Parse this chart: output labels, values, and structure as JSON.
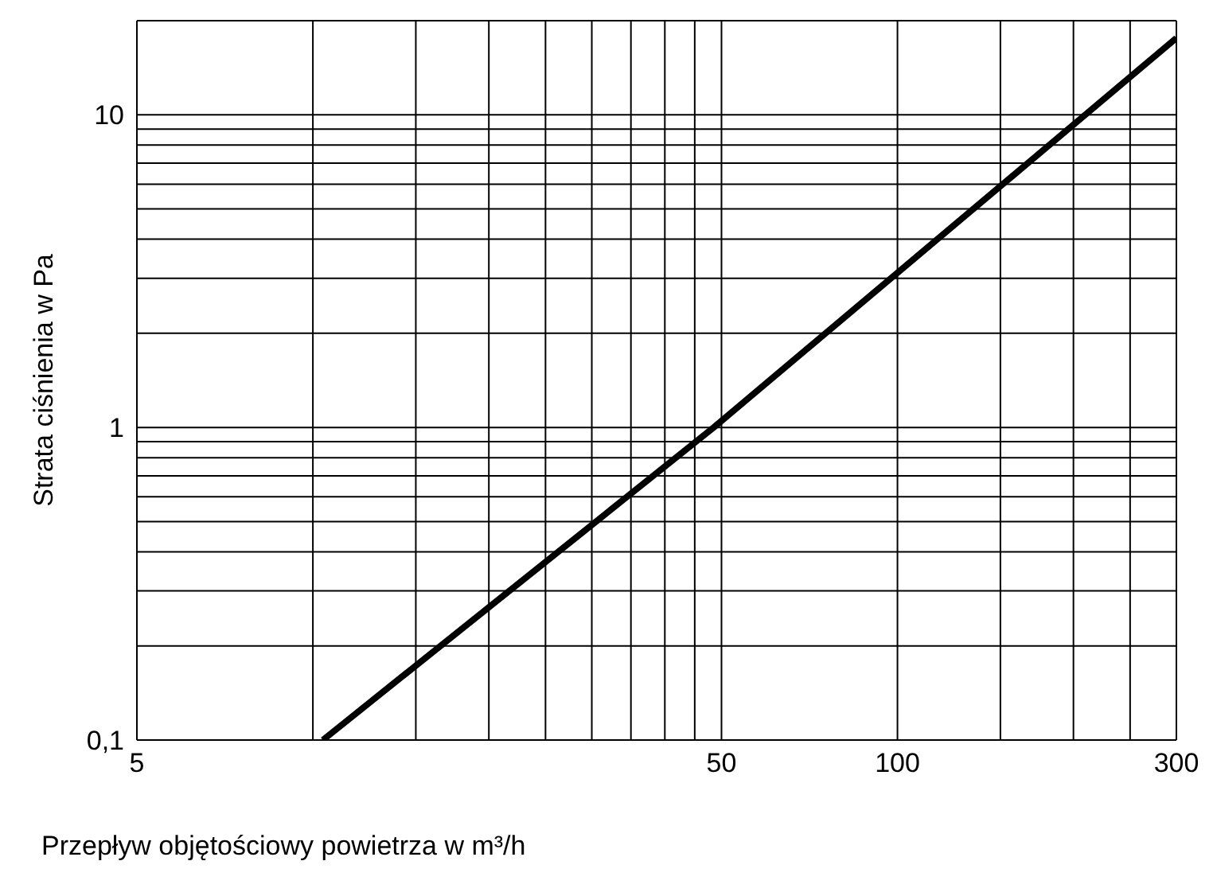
{
  "chart_data": {
    "type": "line",
    "xlabel": "Przepływ objętościowy powietrza w m³/h",
    "ylabel": "Strata ciśnienia w Pa",
    "log": "xy",
    "grid": true,
    "marker": "none",
    "legend": false,
    "xlim": [
      5,
      300
    ],
    "xticks": [
      5,
      {
        "value": 10,
        "label": null
      },
      {
        "value": 15,
        "label": null
      },
      {
        "value": 20,
        "label": null
      },
      {
        "value": 25,
        "label": null
      },
      {
        "value": 30,
        "label": null
      },
      {
        "value": 35,
        "label": null
      },
      {
        "value": 40,
        "label": null
      },
      {
        "value": 45,
        "label": null
      },
      50,
      100,
      {
        "value": 150,
        "label": null
      },
      {
        "value": 200,
        "label": null
      },
      {
        "value": 250,
        "label": null
      },
      300
    ],
    "ylim": [
      0.1,
      20
    ],
    "yticks": [
      {
        "value": 0.1,
        "label": "0,1"
      },
      {
        "value": 0.2,
        "label": null
      },
      {
        "value": 0.3,
        "label": null
      },
      {
        "value": 0.4,
        "label": null
      },
      {
        "value": 0.5,
        "label": null
      },
      {
        "value": 0.6,
        "label": null
      },
      {
        "value": 0.7,
        "label": null
      },
      {
        "value": 0.8,
        "label": null
      },
      {
        "value": 0.9,
        "label": null
      },
      1,
      {
        "value": 2,
        "label": null
      },
      {
        "value": 3,
        "label": null
      },
      {
        "value": 4,
        "label": null
      },
      {
        "value": 5,
        "label": null
      },
      {
        "value": 6,
        "label": null
      },
      {
        "value": 7,
        "label": null
      },
      {
        "value": 8,
        "label": null
      },
      {
        "value": 9,
        "label": null
      },
      10
    ],
    "series": [
      {
        "color": "#000000",
        "x": [
          10.4,
          48.5,
          300
        ],
        "values": [
          0.1,
          1,
          17.6
        ]
      }
    ]
  }
}
